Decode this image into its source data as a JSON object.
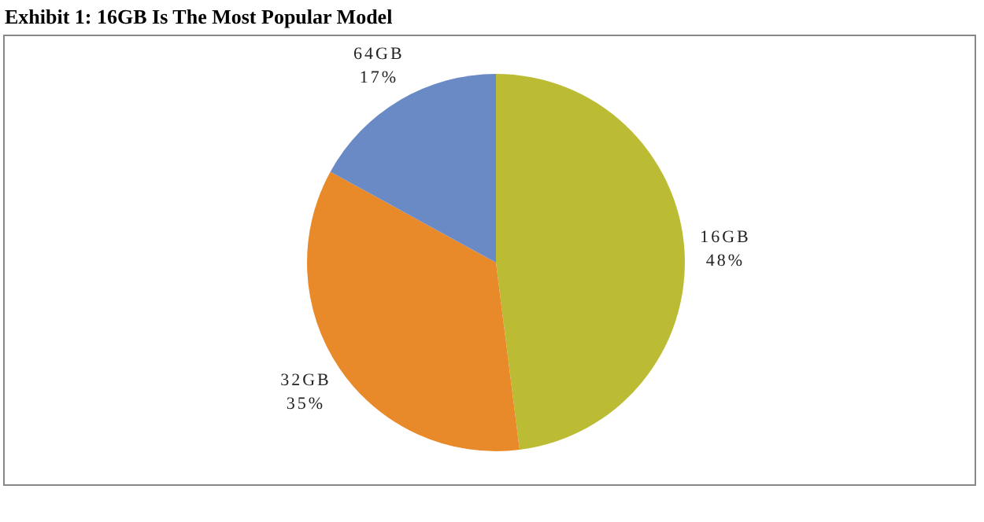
{
  "chart_data": {
    "type": "pie",
    "title": "Exhibit 1: 16GB Is The Most Popular Model",
    "categories": [
      "16GB",
      "32GB",
      "64GB"
    ],
    "values": [
      48,
      35,
      17
    ],
    "value_labels": [
      "48%",
      "35%",
      "17%"
    ],
    "colors": [
      "#bcbc34",
      "#e8892a",
      "#6a8ac6"
    ],
    "legend": false
  }
}
